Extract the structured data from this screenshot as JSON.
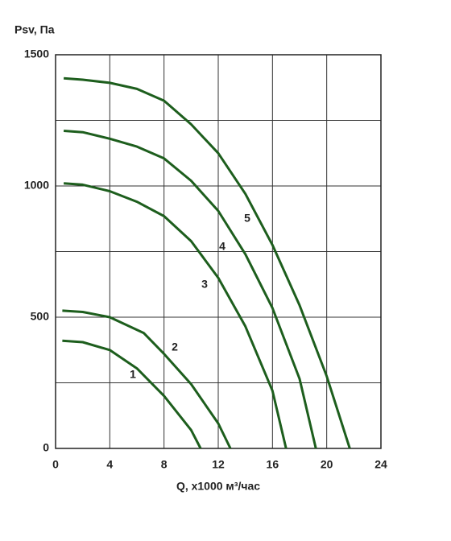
{
  "chart_data": {
    "type": "line",
    "y_label": "Psv, Па",
    "x_label": "Q, x1000 м³/час",
    "xlim": [
      0,
      24
    ],
    "xticks": [
      0,
      4,
      8,
      12,
      16,
      20,
      24
    ],
    "ylim": [
      0,
      1500
    ],
    "yticks": [
      0,
      500,
      1000,
      1500
    ],
    "ygrid": [
      250,
      750,
      1250
    ],
    "grid": true,
    "series": [
      {
        "name": "1",
        "color": "#1d5e1d",
        "x": [
          0.5,
          2,
          4,
          6,
          8,
          10,
          10.7
        ],
        "values": [
          410,
          405,
          375,
          305,
          200,
          70,
          0
        ]
      },
      {
        "name": "2",
        "color": "#1d5e1d",
        "x": [
          0.5,
          2,
          4,
          6.5,
          8,
          10,
          12,
          12.9
        ],
        "values": [
          525,
          520,
          500,
          440,
          360,
          245,
          95,
          0
        ]
      },
      {
        "name": "3",
        "color": "#1d5e1d",
        "x": [
          0.6,
          2,
          4,
          6,
          8,
          10,
          12,
          14,
          16,
          17
        ],
        "values": [
          1010,
          1005,
          980,
          940,
          885,
          790,
          650,
          465,
          220,
          0
        ]
      },
      {
        "name": "4",
        "color": "#1d5e1d",
        "x": [
          0.6,
          2,
          4,
          6,
          8,
          10,
          12,
          14,
          16,
          18,
          19.2
        ],
        "values": [
          1210,
          1205,
          1180,
          1150,
          1105,
          1020,
          905,
          740,
          535,
          265,
          0
        ]
      },
      {
        "name": "5",
        "color": "#1d5e1d",
        "x": [
          0.6,
          2,
          4,
          6,
          8,
          10,
          12,
          14,
          16,
          18,
          20,
          21.7
        ],
        "values": [
          1410,
          1405,
          1393,
          1370,
          1325,
          1235,
          1125,
          970,
          775,
          545,
          275,
          0
        ]
      }
    ]
  }
}
